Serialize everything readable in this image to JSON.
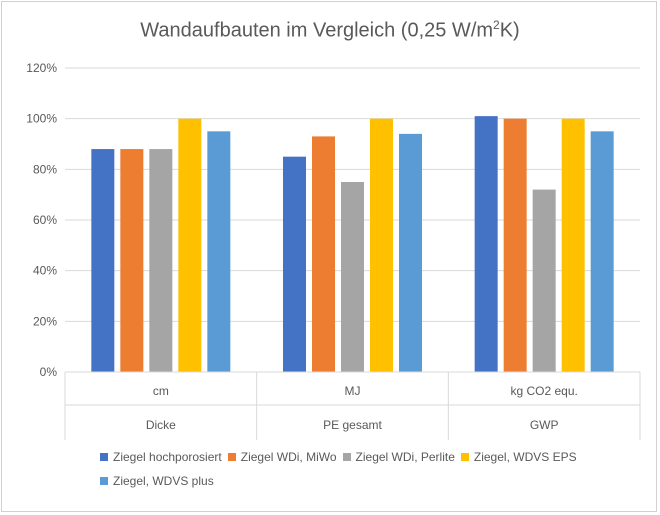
{
  "chart_data": {
    "type": "bar",
    "title": "Wandaufbauten im Vergleich (0,25 W/m",
    "title_sup": "2",
    "title_end": "K)",
    "categories": [
      {
        "unit": "cm",
        "group": "Dicke"
      },
      {
        "unit": "MJ",
        "group": "PE gesamt"
      },
      {
        "unit": "kg CO2 equ.",
        "group": "GWP"
      }
    ],
    "ylim": [
      0,
      120
    ],
    "yticks": [
      "0%",
      "20%",
      "40%",
      "60%",
      "80%",
      "100%",
      "120%"
    ],
    "ytick_values": [
      0,
      20,
      40,
      60,
      80,
      100,
      120
    ],
    "grid": true,
    "legend_position": "bottom",
    "series": [
      {
        "name": "Ziegel hochporosiert",
        "color": "#4472c4",
        "values": [
          88,
          85,
          101
        ]
      },
      {
        "name": "Ziegel WDi, MiWo",
        "color": "#ed7d31",
        "values": [
          88,
          93,
          100
        ]
      },
      {
        "name": "Ziegel WDi, Perlite",
        "color": "#a5a5a5",
        "values": [
          88,
          75,
          72
        ]
      },
      {
        "name": "Ziegel, WDVS EPS",
        "color": "#ffc000",
        "values": [
          100,
          100,
          100
        ]
      },
      {
        "name": "Ziegel, WDVS plus",
        "color": "#5b9bd5",
        "values": [
          95,
          94,
          95
        ]
      }
    ]
  }
}
